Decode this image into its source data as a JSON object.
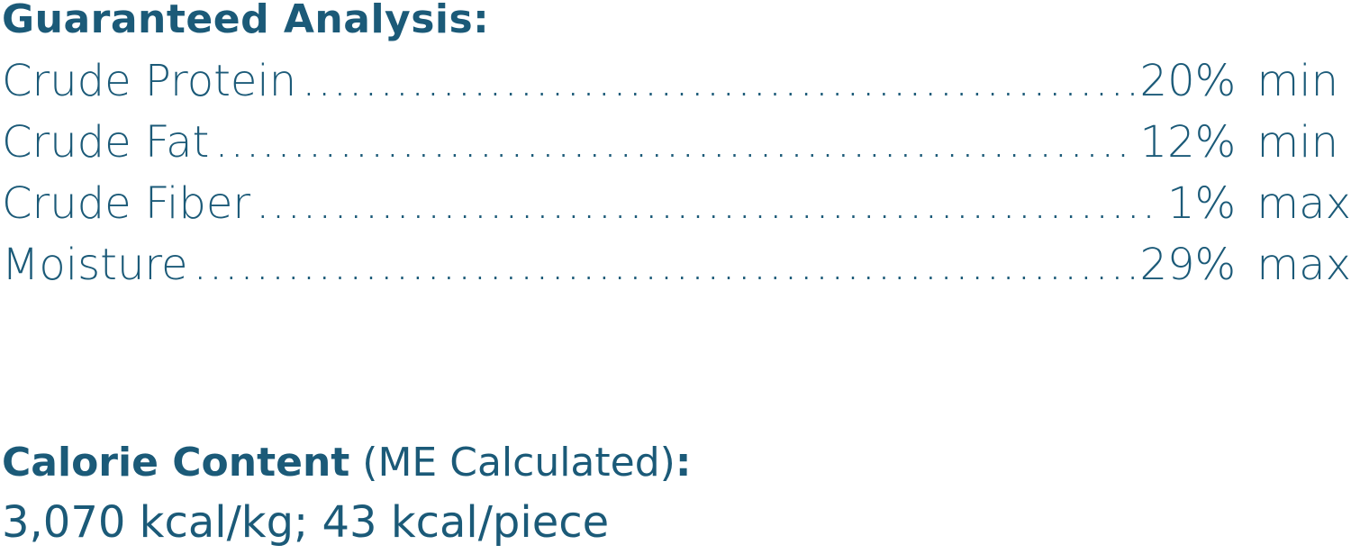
{
  "guaranteed_analysis": {
    "heading": "Guaranteed Analysis:",
    "rows": [
      {
        "label": "Crude Protein",
        "value": "20% min"
      },
      {
        "label": "Crude Fat",
        "value": "12% min"
      },
      {
        "label": "Crude Fiber",
        "value": "1% max"
      },
      {
        "label": "Moisture",
        "value": "29% max"
      }
    ]
  },
  "calorie_content": {
    "heading_bold": "Calorie Content",
    "heading_paren": " (ME Calculated)",
    "heading_colon": ":",
    "value": "3,070 kcal/kg; 43 kcal/piece"
  },
  "colors": {
    "text": "#1b5a78"
  }
}
